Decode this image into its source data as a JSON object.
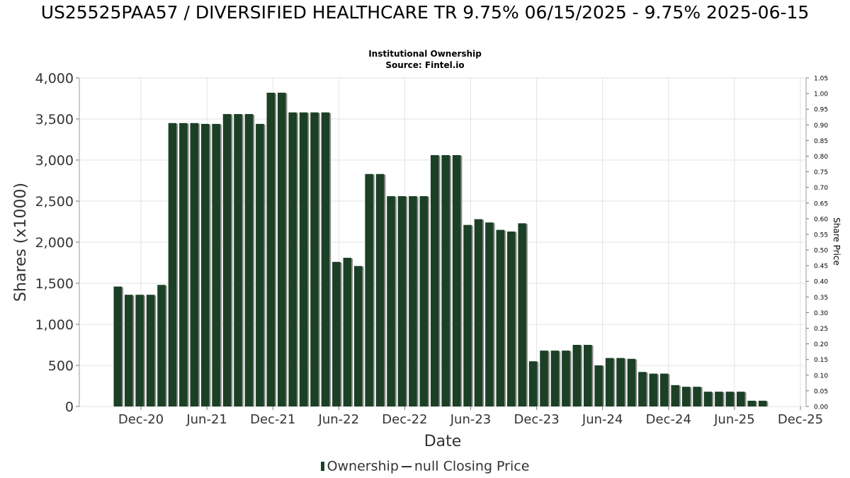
{
  "chart_data": {
    "type": "bar",
    "title": "US25525PAA57 / DIVERSIFIED HEALTHCARE TR 9.75% 06/15/2025 - 9.75% 2025-06-15",
    "subtitle_lines": [
      "Institutional Ownership",
      "Source: Fintel.io"
    ],
    "xlabel": "Date",
    "ylabel": "Shares (x1000)",
    "y2label": "Share Price",
    "ylim": [
      0,
      4000
    ],
    "y2lim": [
      0,
      1.05
    ],
    "yticks": [
      "0",
      "500",
      "1,000",
      "1,500",
      "2,000",
      "2,500",
      "3,000",
      "3,500",
      "4,000"
    ],
    "y2ticks": [
      "0.00",
      "0.05",
      "0.10",
      "0.15",
      "0.20",
      "0.25",
      "0.30",
      "0.35",
      "0.40",
      "0.45",
      "0.50",
      "0.55",
      "0.60",
      "0.65",
      "0.70",
      "0.75",
      "0.80",
      "0.85",
      "0.90",
      "0.95",
      "1.00",
      "1.05"
    ],
    "xticks": [
      "Dec-20",
      "Jun-21",
      "Dec-21",
      "Jun-22",
      "Dec-22",
      "Jun-23",
      "Dec-23",
      "Jun-24",
      "Dec-24",
      "Jun-25",
      "Dec-25"
    ],
    "grid": true,
    "series": [
      {
        "name": "Ownership",
        "color": "#1b4025",
        "values": [
          1460,
          1360,
          1360,
          1360,
          1480,
          3450,
          3450,
          3450,
          3440,
          3440,
          3560,
          3560,
          3560,
          3440,
          3820,
          3820,
          3580,
          3580,
          3580,
          3580,
          1760,
          1810,
          1710,
          2830,
          2830,
          2560,
          2560,
          2560,
          2560,
          3060,
          3060,
          3060,
          2210,
          2280,
          2240,
          2150,
          2130,
          2230,
          550,
          680,
          680,
          680,
          750,
          750,
          500,
          590,
          590,
          580,
          420,
          400,
          400,
          260,
          240,
          240,
          180,
          180,
          180,
          180,
          70,
          70
        ]
      }
    ],
    "legend": {
      "items": [
        {
          "label": "Ownership",
          "kind": "bar"
        },
        {
          "label": "null Closing Price",
          "kind": "line"
        }
      ],
      "position": "bottom"
    }
  }
}
